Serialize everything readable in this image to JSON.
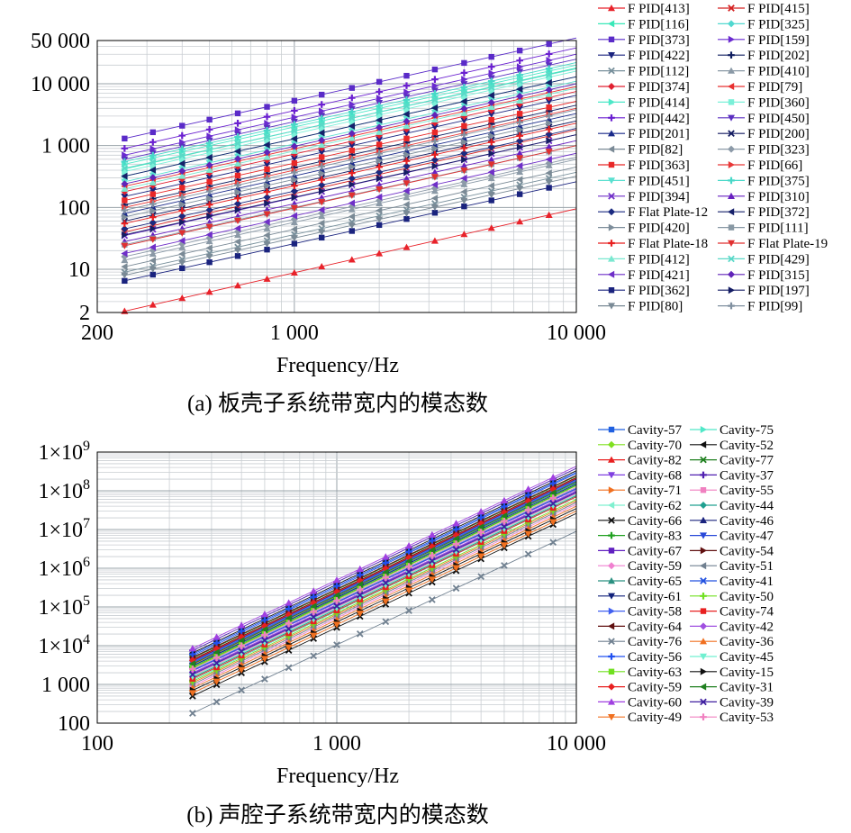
{
  "chart_data": [
    {
      "type": "line",
      "scale": "log-log",
      "caption": "(a) 板壳子系统带宽内的模态数",
      "xlabel": "Frequency/Hz",
      "ylabel": "",
      "xlim": [
        200,
        10000
      ],
      "ylim": [
        2,
        50000
      ],
      "xticks": [
        {
          "v": 200,
          "label": "200"
        },
        {
          "v": 1000,
          "label": "1 000"
        },
        {
          "v": 10000,
          "label": "10 000"
        }
      ],
      "yticks": [
        {
          "v": 2,
          "label": "2"
        },
        {
          "v": 10,
          "label": "10"
        },
        {
          "v": 100,
          "label": "100"
        },
        {
          "v": 1000,
          "label": "1 000"
        },
        {
          "v": 10000,
          "label": "10 000"
        },
        {
          "v": 50000,
          "label": "50 000"
        }
      ],
      "x": [
        250,
        315,
        400,
        500,
        630,
        800,
        1000,
        1250,
        1600,
        2000,
        2500,
        3150,
        4000,
        5000,
        6300,
        8000,
        10000
      ],
      "series": [
        {
          "name": "F PID[413]",
          "color": "#e8222a",
          "marker": "triangle",
          "y0": 2.1,
          "end": 95
        },
        {
          "name": "F PID[415]",
          "color": "#d42020",
          "marker": "x",
          "y0": 40,
          "end": 1800
        },
        {
          "name": "F PID[116]",
          "color": "#38e8b8",
          "marker": "tri-left",
          "y0": 420,
          "end": 18000
        },
        {
          "name": "F PID[325]",
          "color": "#50d8d0",
          "marker": "diamond",
          "y0": 320,
          "end": 13000
        },
        {
          "name": "F PID[373]",
          "color": "#5a2bc8",
          "marker": "square",
          "y0": 1300,
          "end": 55000
        },
        {
          "name": "F PID[159]",
          "color": "#6a2ad0",
          "marker": "tri-right",
          "y0": 700,
          "end": 30000
        },
        {
          "name": "F PID[422]",
          "color": "#1a237e",
          "marker": "tri-down",
          "y0": 150,
          "end": 6500
        },
        {
          "name": "F PID[202]",
          "color": "#0d1b5e",
          "marker": "plus",
          "y0": 110,
          "end": 4500
        },
        {
          "name": "F PID[112]",
          "color": "#78909c",
          "marker": "x",
          "y0": 9,
          "end": 370
        },
        {
          "name": "F PID[410]",
          "color": "#8a99a6",
          "marker": "triangle",
          "y0": 14,
          "end": 600
        },
        {
          "name": "F PID[374]",
          "color": "#e02030",
          "marker": "diamond",
          "y0": 180,
          "end": 7500
        },
        {
          "name": "F PID[79]",
          "color": "#e83030",
          "marker": "tri-left",
          "y0": 220,
          "end": 9000
        },
        {
          "name": "F PID[414]",
          "color": "#4de8c8",
          "marker": "tri-right",
          "y0": 500,
          "end": 20000
        },
        {
          "name": "F PID[360]",
          "color": "#7af0d8",
          "marker": "square",
          "y0": 380,
          "end": 16000
        },
        {
          "name": "F PID[442]",
          "color": "#6a1fd0",
          "marker": "plus",
          "y0": 900,
          "end": 38000
        },
        {
          "name": "F PID[450]",
          "color": "#5b2fc0",
          "marker": "tri-down",
          "y0": 600,
          "end": 25000
        },
        {
          "name": "F PID[201]",
          "color": "#1a2a8a",
          "marker": "triangle",
          "y0": 80,
          "end": 3300
        },
        {
          "name": "F PID[200]",
          "color": "#121a60",
          "marker": "x",
          "y0": 60,
          "end": 2500
        },
        {
          "name": "F PID[82]",
          "color": "#7a8a96",
          "marker": "tri-left",
          "y0": 11,
          "end": 450
        },
        {
          "name": "F PID[323]",
          "color": "#8c9aa8",
          "marker": "diamond",
          "y0": 16,
          "end": 650
        },
        {
          "name": "F PID[363]",
          "color": "#e82828",
          "marker": "square",
          "y0": 130,
          "end": 5200
        },
        {
          "name": "F PID[66]",
          "color": "#e83838",
          "marker": "tri-right",
          "y0": 100,
          "end": 4000
        },
        {
          "name": "F PID[451]",
          "color": "#5ae0d0",
          "marker": "tri-down",
          "y0": 260,
          "end": 11000
        },
        {
          "name": "F PID[375]",
          "color": "#48d8c8",
          "marker": "plus",
          "y0": 550,
          "end": 22000
        },
        {
          "name": "F PID[394]",
          "color": "#7030c8",
          "marker": "x",
          "y0": 35,
          "end": 1500
        },
        {
          "name": "F PID[310]",
          "color": "#6820c0",
          "marker": "triangle",
          "y0": 28,
          "end": 1200
        },
        {
          "name": "F Flat Plate-12",
          "color": "#1a2a80",
          "marker": "diamond",
          "y0": 45,
          "end": 1900
        },
        {
          "name": "F PID[372]",
          "color": "#16206a",
          "marker": "tri-left",
          "y0": 320,
          "end": 13000
        },
        {
          "name": "F PID[420]",
          "color": "#7d8d9a",
          "marker": "tri-right",
          "y0": 70,
          "end": 2900
        },
        {
          "name": "F PID[111]",
          "color": "#8898a4",
          "marker": "square",
          "y0": 25,
          "end": 1000
        },
        {
          "name": "F Flat Plate-18",
          "color": "#e82020",
          "marker": "plus",
          "y0": 55,
          "end": 2300
        },
        {
          "name": "F Flat Plate-19",
          "color": "#e03030",
          "marker": "tri-down",
          "y0": 24,
          "end": 1000
        },
        {
          "name": "F PID[412]",
          "color": "#7ae8d0",
          "marker": "triangle",
          "y0": 200,
          "end": 8500
        },
        {
          "name": "F PID[429]",
          "color": "#5ad8c8",
          "marker": "x",
          "y0": 430,
          "end": 17500
        },
        {
          "name": "F PID[421]",
          "color": "#6f2fc8",
          "marker": "tri-left",
          "y0": 18,
          "end": 750
        },
        {
          "name": "F PID[315]",
          "color": "#6024b8",
          "marker": "diamond",
          "y0": 240,
          "end": 10000
        },
        {
          "name": "F PID[362]",
          "color": "#1a237e",
          "marker": "square",
          "y0": 6.5,
          "end": 260
        },
        {
          "name": "F PID[197]",
          "color": "#141c64",
          "marker": "tri-right",
          "y0": 36,
          "end": 1500
        },
        {
          "name": "F PID[80]",
          "color": "#7a8a96",
          "marker": "tri-down",
          "y0": 8,
          "end": 320
        },
        {
          "name": "F PID[99]",
          "color": "#8090a0",
          "marker": "plus",
          "y0": 90,
          "end": 3800
        }
      ]
    },
    {
      "type": "line",
      "scale": "log-log",
      "caption": "(b) 声腔子系统带宽内的模态数",
      "xlabel": "Frequency/Hz",
      "ylabel": "",
      "xlim": [
        100,
        10000
      ],
      "ylim": [
        100,
        1000000000
      ],
      "xticks": [
        {
          "v": 100,
          "label": "100"
        },
        {
          "v": 1000,
          "label": "1 000"
        },
        {
          "v": 10000,
          "label": "10 000"
        }
      ],
      "yticks": [
        {
          "v": 100,
          "label": "100"
        },
        {
          "v": 1000,
          "label": "1 000"
        },
        {
          "v": 10000,
          "label": "1×10",
          "sup": "4"
        },
        {
          "v": 100000,
          "label": "1×10",
          "sup": "5"
        },
        {
          "v": 1000000,
          "label": "1×10",
          "sup": "6"
        },
        {
          "v": 10000000,
          "label": "1×10",
          "sup": "7"
        },
        {
          "v": 100000000,
          "label": "1×10",
          "sup": "8"
        },
        {
          "v": 1000000000,
          "label": "1×10",
          "sup": "9"
        }
      ],
      "x": [
        250,
        315,
        400,
        500,
        630,
        800,
        1000,
        1250,
        1600,
        2000,
        2500,
        3150,
        4000,
        5000,
        6300,
        8000,
        10000
      ],
      "series": [
        {
          "name": "Cavity-57",
          "color": "#2060e0",
          "marker": "square",
          "y0": 5500,
          "end": 280000000
        },
        {
          "name": "Cavity-75",
          "color": "#50e8c8",
          "marker": "tri-right",
          "y0": 1300,
          "end": 70000000
        },
        {
          "name": "Cavity-70",
          "color": "#80e020",
          "marker": "diamond",
          "y0": 2600,
          "end": 140000000
        },
        {
          "name": "Cavity-52",
          "color": "#101010",
          "marker": "tri-left",
          "y0": 6500,
          "end": 330000000
        },
        {
          "name": "Cavity-82",
          "color": "#e82020",
          "marker": "triangle",
          "y0": 3300,
          "end": 170000000
        },
        {
          "name": "Cavity-77",
          "color": "#208020",
          "marker": "x",
          "y0": 4800,
          "end": 240000000
        },
        {
          "name": "Cavity-68",
          "color": "#8040e0",
          "marker": "tri-down",
          "y0": 2200,
          "end": 110000000
        },
        {
          "name": "Cavity-37",
          "color": "#5020b0",
          "marker": "plus",
          "y0": 7500,
          "end": 380000000
        },
        {
          "name": "Cavity-71",
          "color": "#f07020",
          "marker": "tri-right",
          "y0": 1100,
          "end": 55000000
        },
        {
          "name": "Cavity-55",
          "color": "#f080c0",
          "marker": "square",
          "y0": 1700,
          "end": 85000000
        },
        {
          "name": "Cavity-62",
          "color": "#80f0d0",
          "marker": "tri-left",
          "y0": 2400,
          "end": 120000000
        },
        {
          "name": "Cavity-44",
          "color": "#20a090",
          "marker": "diamond",
          "y0": 3100,
          "end": 160000000
        },
        {
          "name": "Cavity-66",
          "color": "#101010",
          "marker": "x",
          "y0": 500,
          "end": 26000000
        },
        {
          "name": "Cavity-46",
          "color": "#1a237e",
          "marker": "triangle",
          "y0": 4000,
          "end": 200000000
        },
        {
          "name": "Cavity-83",
          "color": "#20a020",
          "marker": "plus",
          "y0": 2800,
          "end": 140000000
        },
        {
          "name": "Cavity-47",
          "color": "#2848d8",
          "marker": "tri-down",
          "y0": 3600,
          "end": 180000000
        },
        {
          "name": "Cavity-67",
          "color": "#6020c0",
          "marker": "square",
          "y0": 1900,
          "end": 95000000
        },
        {
          "name": "Cavity-54",
          "color": "#601010",
          "marker": "tri-right",
          "y0": 4400,
          "end": 220000000
        },
        {
          "name": "Cavity-59",
          "color": "#f080d0",
          "marker": "diamond",
          "y0": 900,
          "end": 45000000
        },
        {
          "name": "Cavity-51",
          "color": "#708090",
          "marker": "tri-left",
          "y0": 1000,
          "end": 50000000
        },
        {
          "name": "Cavity-65",
          "color": "#2a9080",
          "marker": "triangle",
          "y0": 1500,
          "end": 75000000
        },
        {
          "name": "Cavity-41",
          "color": "#2050e0",
          "marker": "x",
          "y0": 2300,
          "end": 115000000
        },
        {
          "name": "Cavity-61",
          "color": "#10207a",
          "marker": "tri-down",
          "y0": 3000,
          "end": 150000000
        },
        {
          "name": "Cavity-50",
          "color": "#70e020",
          "marker": "plus",
          "y0": 1200,
          "end": 60000000
        },
        {
          "name": "Cavity-58",
          "color": "#4060f0",
          "marker": "tri-right",
          "y0": 3800,
          "end": 190000000
        },
        {
          "name": "Cavity-74",
          "color": "#e82020",
          "marker": "square",
          "y0": 1400,
          "end": 70000000
        },
        {
          "name": "Cavity-64",
          "color": "#601010",
          "marker": "tri-left",
          "y0": 5000,
          "end": 250000000
        },
        {
          "name": "Cavity-42",
          "color": "#a050e0",
          "marker": "diamond",
          "y0": 2000,
          "end": 100000000
        },
        {
          "name": "Cavity-76",
          "color": "#708090",
          "marker": "x",
          "y0": 180,
          "end": 9000000
        },
        {
          "name": "Cavity-36",
          "color": "#f07020",
          "marker": "triangle",
          "y0": 800,
          "end": 40000000
        },
        {
          "name": "Cavity-56",
          "color": "#2050f0",
          "marker": "plus",
          "y0": 6000,
          "end": 300000000
        },
        {
          "name": "Cavity-45",
          "color": "#70f0d0",
          "marker": "tri-down",
          "y0": 1600,
          "end": 80000000
        },
        {
          "name": "Cavity-63",
          "color": "#70e020",
          "marker": "square",
          "y0": 2700,
          "end": 135000000
        },
        {
          "name": "Cavity-15",
          "color": "#101010",
          "marker": "tri-right",
          "y0": 700,
          "end": 35000000
        },
        {
          "name": "Cavity-59",
          "color": "#e82020",
          "marker": "diamond",
          "y0": 4200,
          "end": 210000000
        },
        {
          "name": "Cavity-31",
          "color": "#208020",
          "marker": "tri-left",
          "y0": 3400,
          "end": 170000000
        },
        {
          "name": "Cavity-60",
          "color": "#a040e0",
          "marker": "triangle",
          "y0": 8500,
          "end": 430000000
        },
        {
          "name": "Cavity-39",
          "color": "#4020a0",
          "marker": "x",
          "y0": 1800,
          "end": 90000000
        },
        {
          "name": "Cavity-49",
          "color": "#f07020",
          "marker": "tri-down",
          "y0": 600,
          "end": 30000000
        },
        {
          "name": "Cavity-53",
          "color": "#f080c0",
          "marker": "plus",
          "y0": 2500,
          "end": 125000000
        }
      ]
    }
  ]
}
